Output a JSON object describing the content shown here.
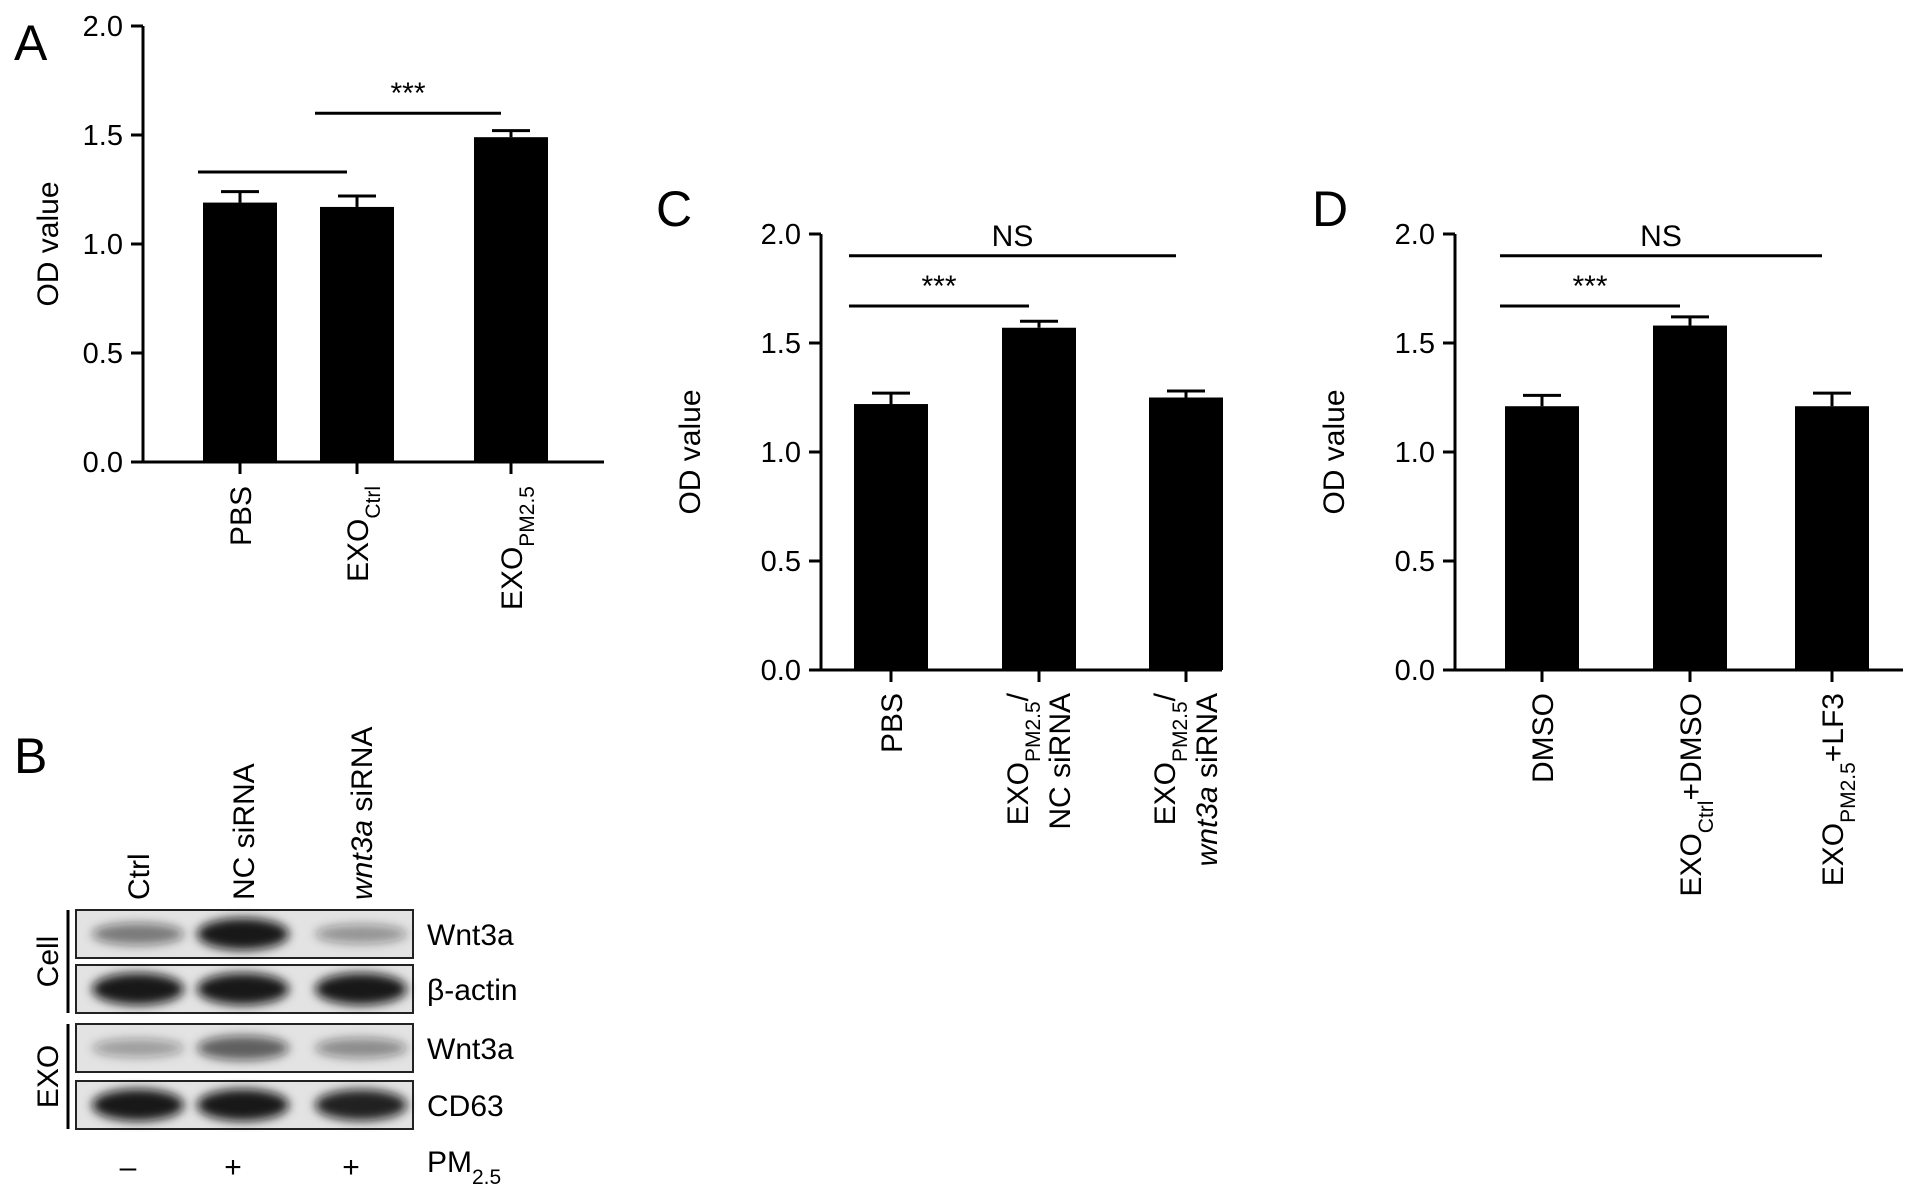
{
  "chart_data": [
    {
      "panel": "A",
      "type": "bar",
      "ylabel": "OD value",
      "ylim": [
        0,
        2.0
      ],
      "yticks": [
        "0.0",
        "0.5",
        "1.0",
        "1.5",
        "2.0"
      ],
      "categories": [
        {
          "parts": [
            {
              "t": "PBS"
            }
          ]
        },
        {
          "parts": [
            {
              "t": "EXO"
            },
            {
              "t": "Ctrl",
              "sub": true
            }
          ]
        },
        {
          "parts": [
            {
              "t": "EXO"
            },
            {
              "t": "PM2.5",
              "sub": true
            }
          ]
        }
      ],
      "values": [
        1.19,
        1.17,
        1.49
      ],
      "errors": [
        0.05,
        0.05,
        0.03
      ],
      "comparisons": [
        {
          "from": 0,
          "to": 1,
          "label": "",
          "y": 1.33
        },
        {
          "from": 1,
          "to": 2,
          "label": "***",
          "y": 1.6
        }
      ]
    },
    {
      "panel": "C",
      "type": "bar",
      "ylabel": "OD value",
      "ylim": [
        0,
        2.0
      ],
      "yticks": [
        "0.0",
        "0.5",
        "1.0",
        "1.5",
        "2.0"
      ],
      "categories": [
        {
          "parts": [
            {
              "t": "PBS"
            }
          ]
        },
        {
          "parts": [
            {
              "t": "EXO"
            },
            {
              "t": "PM2.5",
              "sub": true
            },
            {
              "t": "/"
            }
          ],
          "line2": [
            {
              "t": "NC siRNA"
            }
          ]
        },
        {
          "parts": [
            {
              "t": "EXO"
            },
            {
              "t": "PM2.5",
              "sub": true
            },
            {
              "t": "/"
            }
          ],
          "line2": [
            {
              "t": "wnt3a",
              "italic": true
            },
            {
              "t": " siRNA"
            }
          ]
        }
      ],
      "values": [
        1.22,
        1.57,
        1.25
      ],
      "errors": [
        0.05,
        0.03,
        0.03
      ],
      "comparisons": [
        {
          "from": 0,
          "to": 1,
          "label": "***",
          "y": 1.67
        },
        {
          "from": 0,
          "to": 2,
          "label": "NS",
          "y": 1.9
        }
      ]
    },
    {
      "panel": "D",
      "type": "bar",
      "ylabel": "OD value",
      "ylim": [
        0,
        2.0
      ],
      "yticks": [
        "0.0",
        "0.5",
        "1.0",
        "1.5",
        "2.0"
      ],
      "categories": [
        {
          "parts": [
            {
              "t": "DMSO"
            }
          ]
        },
        {
          "parts": [
            {
              "t": "EXO"
            },
            {
              "t": "Ctrl",
              "sub": true
            },
            {
              "t": "+DMSO"
            }
          ]
        },
        {
          "parts": [
            {
              "t": "EXO"
            },
            {
              "t": "PM2.5",
              "sub": true
            },
            {
              "t": "+LF3"
            }
          ]
        }
      ],
      "values": [
        1.21,
        1.58,
        1.21
      ],
      "errors": [
        0.05,
        0.04,
        0.06
      ],
      "comparisons": [
        {
          "from": 0,
          "to": 1,
          "label": "***",
          "y": 1.67
        },
        {
          "from": 0,
          "to": 2,
          "label": "NS",
          "y": 1.9
        }
      ]
    }
  ],
  "blot": {
    "panel": "B",
    "lanes": [
      {
        "parts": [
          {
            "t": "Ctrl"
          }
        ]
      },
      {
        "parts": [
          {
            "t": "NC siRNA"
          }
        ]
      },
      {
        "parts": [
          {
            "t": "wnt3a",
            "italic": true
          },
          {
            "t": " siRNA"
          }
        ]
      }
    ],
    "groups": [
      "Cell",
      "EXO"
    ],
    "rows": [
      {
        "label": "Wnt3a",
        "intensity": [
          0.45,
          1.0,
          0.3
        ]
      },
      {
        "label": "β-actin",
        "intensity": [
          1.0,
          1.0,
          1.0
        ]
      },
      {
        "label": "Wnt3a",
        "intensity": [
          0.25,
          0.6,
          0.35
        ]
      },
      {
        "label": "CD63",
        "intensity": [
          1.0,
          1.0,
          0.95
        ]
      }
    ],
    "treatment": {
      "label": "PM",
      "sub": "2.5",
      "values": [
        "–",
        "+",
        "+"
      ]
    }
  }
}
